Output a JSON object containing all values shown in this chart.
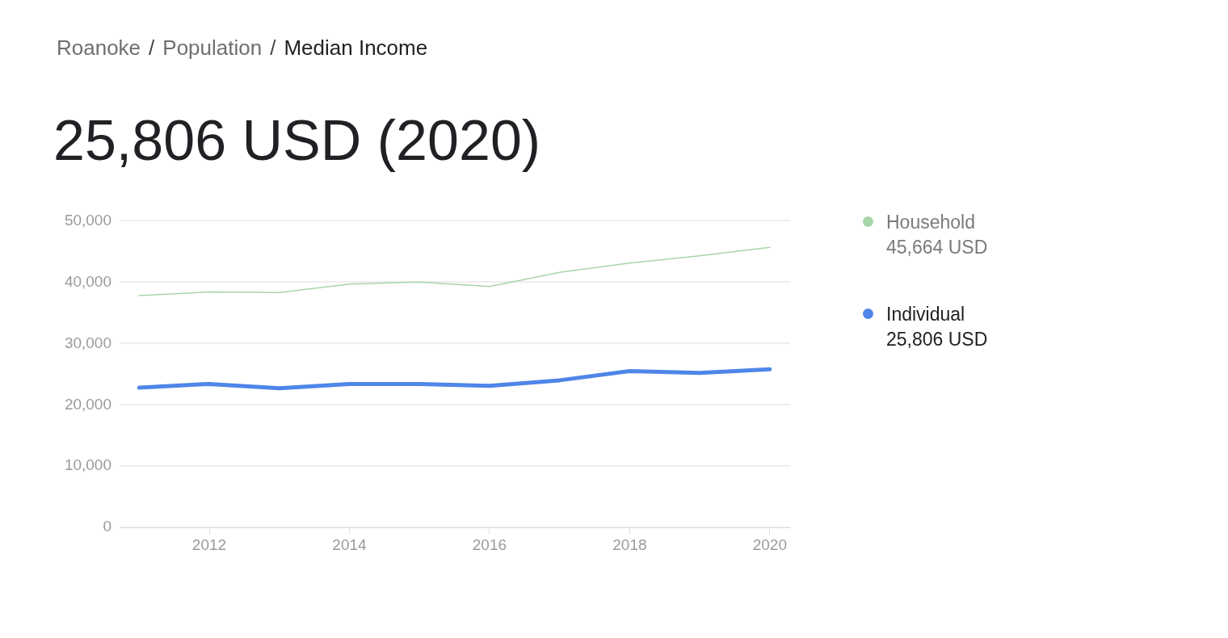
{
  "chart_data": {
    "type": "line",
    "title": "Roanoke / Population / Median Income",
    "subtitle": "25,806 USD (2020)",
    "x": [
      2011,
      2012,
      2013,
      2014,
      2015,
      2016,
      2017,
      2018,
      2019,
      2020
    ],
    "annotations": [
      "45,664 USD",
      "25,806 USD"
    ],
    "series": [
      {
        "name": "Household",
        "color": "#a8d5a9",
        "values": [
          37800,
          38400,
          38300,
          39700,
          40000,
          39300,
          41600,
          43100,
          44300,
          45664
        ]
      },
      {
        "name": "Individual",
        "color": "#4f86e8",
        "values": [
          22800,
          23400,
          22700,
          23400,
          23400,
          23100,
          24000,
          25500,
          25200,
          25806
        ]
      }
    ],
    "xlim": [
      2010.72,
      2020.29
    ],
    "xticks": [
      2012,
      2014,
      2016,
      2018,
      2020
    ],
    "ylim": [
      0,
      50000
    ],
    "yticks": [
      0,
      {
        "value": 10000,
        "label": "10,000"
      },
      {
        "value": 20000,
        "label": "20,000"
      },
      {
        "value": 30000,
        "label": "30,000"
      },
      {
        "value": 40000,
        "label": "40,000"
      },
      {
        "value": 50000,
        "label": "50,000"
      }
    ],
    "grid": "y",
    "legend": "right",
    "marker": "none",
    "line_style": "solid"
  }
}
